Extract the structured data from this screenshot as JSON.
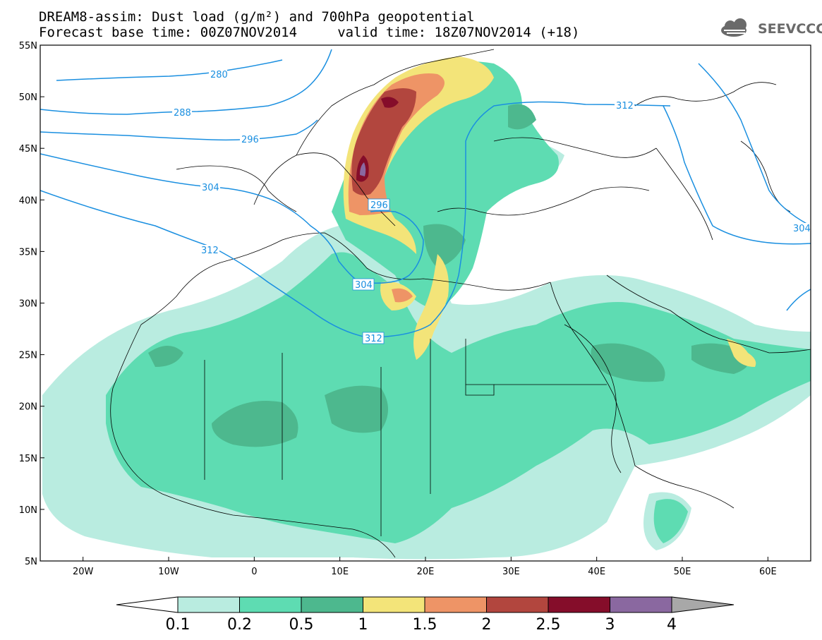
{
  "title": {
    "line1": "DREAM8-assim: Dust load (g/m²) and 700hPa geopotential",
    "line2": "Forecast base time: 00Z07NOV2014     valid time: 18Z07NOV2014 (+18)"
  },
  "logo": {
    "text": "SEEVCCC",
    "icon": "cloud-icon"
  },
  "map": {
    "lon_range": [
      -25,
      65
    ],
    "lat_range": [
      5,
      55
    ],
    "lat_labels": [
      "55N",
      "50N",
      "45N",
      "40N",
      "35N",
      "30N",
      "25N",
      "20N",
      "15N",
      "10N",
      "5N"
    ],
    "lon_labels": [
      "20W",
      "10W",
      "0",
      "10E",
      "20E",
      "30E",
      "40E",
      "50E",
      "60E"
    ],
    "contour_color": "#1a8fe0",
    "contour_labels": [
      "280",
      "288",
      "296",
      "304",
      "312",
      "296",
      "304",
      "312",
      "312",
      "304"
    ]
  },
  "colorbar": {
    "labels": [
      "0.1",
      "0.2",
      "0.5",
      "1",
      "1.5",
      "2",
      "2.5",
      "3",
      "4"
    ],
    "colors": [
      "#b9ece0",
      "#5edcb2",
      "#4db88e",
      "#f3e479",
      "#ee9466",
      "#b2463e",
      "#850d2a",
      "#8a68a0",
      "#a8a8a8"
    ]
  }
}
